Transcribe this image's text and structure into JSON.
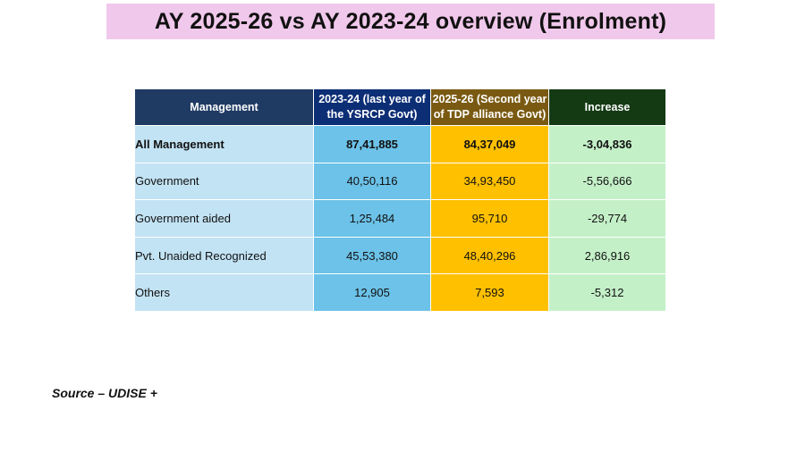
{
  "title": "AY 2025-26 vs AY 2023-24 overview (Enrolment)",
  "table": {
    "headers": {
      "management": "Management",
      "y2324_line1": "2023-24 (last year of",
      "y2324_line2": "the YSRCP Govt)",
      "y2526_line1": "2025-26 (Second year",
      "y2526_line2": "of TDP alliance Govt)",
      "increase": "Increase"
    },
    "rows": [
      {
        "management": "All Management",
        "y2324": "87,41,885",
        "y2526": "84,37,049",
        "increase": "-3,04,836"
      },
      {
        "management": "Government",
        "y2324": "40,50,116",
        "y2526": "34,93,450",
        "increase": "-5,56,666"
      },
      {
        "management": "Government aided",
        "y2324": "1,25,484",
        "y2526": "95,710",
        "increase": "-29,774"
      },
      {
        "management": "Pvt. Unaided Recognized",
        "y2324": "45,53,380",
        "y2526": "48,40,296",
        "increase": "2,86,916"
      },
      {
        "management": "Others",
        "y2324": "12,905",
        "y2526": "7,593",
        "increase": "-5,312"
      }
    ]
  },
  "source": "Source – UDISE +",
  "colors": {
    "title_bg": "#f0c8eb",
    "header_management": "#1f3a63",
    "header_2023_24": "#0c2e75",
    "header_2025_26": "#7a5a12",
    "header_increase": "#143a14",
    "col_management": "#c2e3f4",
    "col_2023_24": "#6cc2e8",
    "col_2025_26": "#ffc000",
    "col_increase": "#c4f0c8"
  }
}
